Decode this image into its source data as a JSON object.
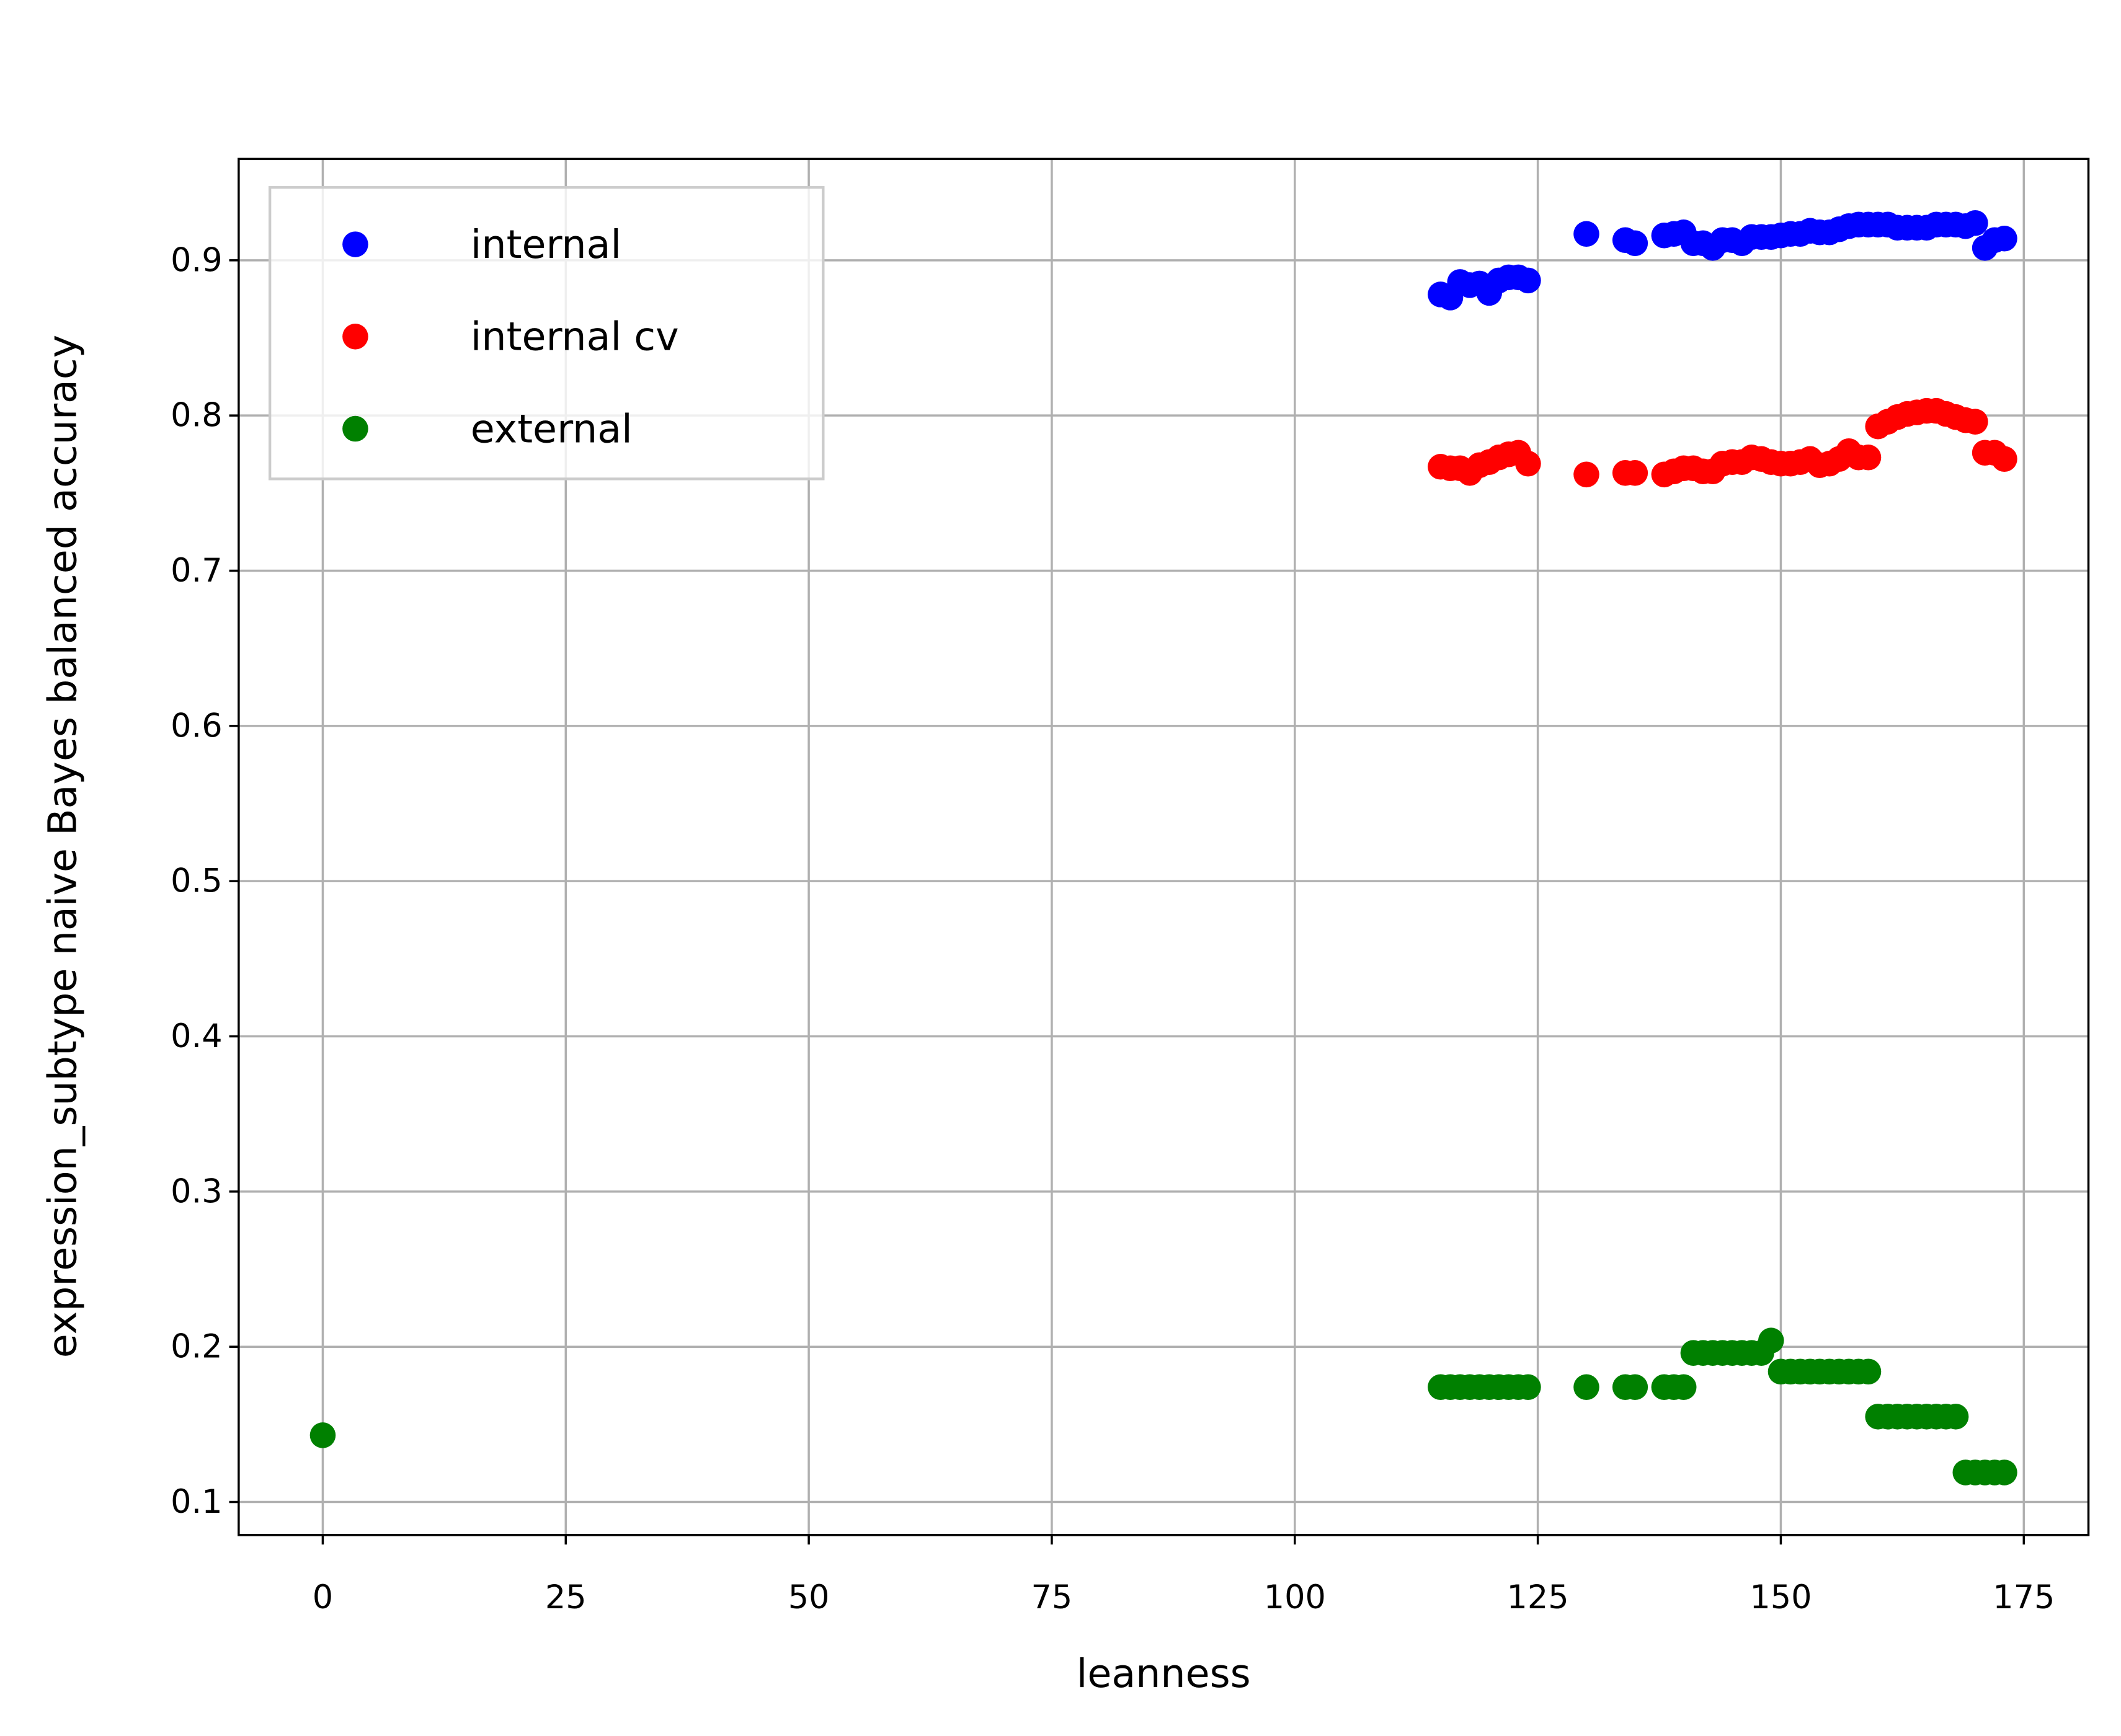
{
  "chart_data": {
    "type": "scatter",
    "xlabel": "leanness",
    "ylabel": "expression_subtype naive Bayes balanced accuracy",
    "xlim": [
      -8.65,
      181.65
    ],
    "ylim": [
      0.0787,
      0.9653
    ],
    "xticks": [
      0,
      25,
      50,
      75,
      100,
      125,
      150,
      175
    ],
    "yticks": [
      0.1,
      0.2,
      0.3,
      0.4,
      0.5,
      0.6,
      0.7,
      0.8,
      0.9
    ],
    "grid": true,
    "legend": "upper left",
    "series": [
      {
        "name": "internal",
        "color": "#0000ff",
        "x": [
          115,
          116,
          117,
          118,
          119,
          120,
          121,
          122,
          123,
          124,
          130,
          134,
          135,
          138,
          139,
          140,
          141,
          142,
          143,
          144,
          145,
          146,
          147,
          148,
          149,
          150,
          151,
          152,
          153,
          154,
          155,
          156,
          157,
          158,
          159,
          160,
          161,
          162,
          163,
          164,
          165,
          166,
          167,
          168,
          169,
          170,
          171,
          172,
          173
        ],
        "values": [
          0.878,
          0.876,
          0.886,
          0.884,
          0.885,
          0.879,
          0.887,
          0.889,
          0.889,
          0.887,
          0.917,
          0.913,
          0.911,
          0.916,
          0.917,
          0.918,
          0.911,
          0.911,
          0.908,
          0.913,
          0.913,
          0.911,
          0.915,
          0.915,
          0.915,
          0.916,
          0.917,
          0.917,
          0.919,
          0.918,
          0.918,
          0.92,
          0.922,
          0.923,
          0.923,
          0.923,
          0.923,
          0.921,
          0.921,
          0.921,
          0.921,
          0.923,
          0.923,
          0.923,
          0.922,
          0.924,
          0.908,
          0.913,
          0.914
        ]
      },
      {
        "name": "internal cv",
        "color": "#ff0000",
        "x": [
          115,
          116,
          117,
          118,
          119,
          120,
          121,
          122,
          123,
          124,
          130,
          134,
          135,
          138,
          139,
          140,
          141,
          142,
          143,
          144,
          145,
          146,
          147,
          148,
          149,
          150,
          151,
          152,
          153,
          154,
          155,
          156,
          157,
          158,
          159,
          160,
          161,
          162,
          163,
          164,
          165,
          166,
          167,
          168,
          169,
          170,
          171,
          172,
          173
        ],
        "values": [
          0.767,
          0.766,
          0.766,
          0.763,
          0.768,
          0.77,
          0.773,
          0.775,
          0.776,
          0.769,
          0.762,
          0.763,
          0.763,
          0.762,
          0.764,
          0.766,
          0.766,
          0.764,
          0.764,
          0.769,
          0.77,
          0.77,
          0.773,
          0.772,
          0.77,
          0.769,
          0.769,
          0.77,
          0.772,
          0.768,
          0.769,
          0.772,
          0.777,
          0.773,
          0.773,
          0.793,
          0.796,
          0.799,
          0.801,
          0.802,
          0.803,
          0.803,
          0.801,
          0.799,
          0.797,
          0.796,
          0.776,
          0.776,
          0.772
        ]
      },
      {
        "name": "external",
        "color": "#008000",
        "x": [
          0,
          115,
          116,
          117,
          118,
          119,
          120,
          121,
          122,
          123,
          124,
          130,
          134,
          135,
          138,
          139,
          140,
          141,
          142,
          143,
          144,
          145,
          146,
          147,
          148,
          149,
          150,
          151,
          152,
          153,
          154,
          155,
          156,
          157,
          158,
          159,
          160,
          161,
          162,
          163,
          164,
          165,
          166,
          167,
          168,
          169,
          170,
          171,
          172,
          173
        ],
        "values": [
          0.143,
          0.174,
          0.174,
          0.174,
          0.174,
          0.174,
          0.174,
          0.174,
          0.174,
          0.174,
          0.174,
          0.174,
          0.174,
          0.174,
          0.174,
          0.174,
          0.174,
          0.196,
          0.196,
          0.196,
          0.196,
          0.196,
          0.196,
          0.196,
          0.196,
          0.204,
          0.184,
          0.184,
          0.184,
          0.184,
          0.184,
          0.184,
          0.184,
          0.184,
          0.184,
          0.184,
          0.155,
          0.155,
          0.155,
          0.155,
          0.155,
          0.155,
          0.155,
          0.155,
          0.155,
          0.119,
          0.119,
          0.119,
          0.119,
          0.119
        ]
      }
    ]
  }
}
